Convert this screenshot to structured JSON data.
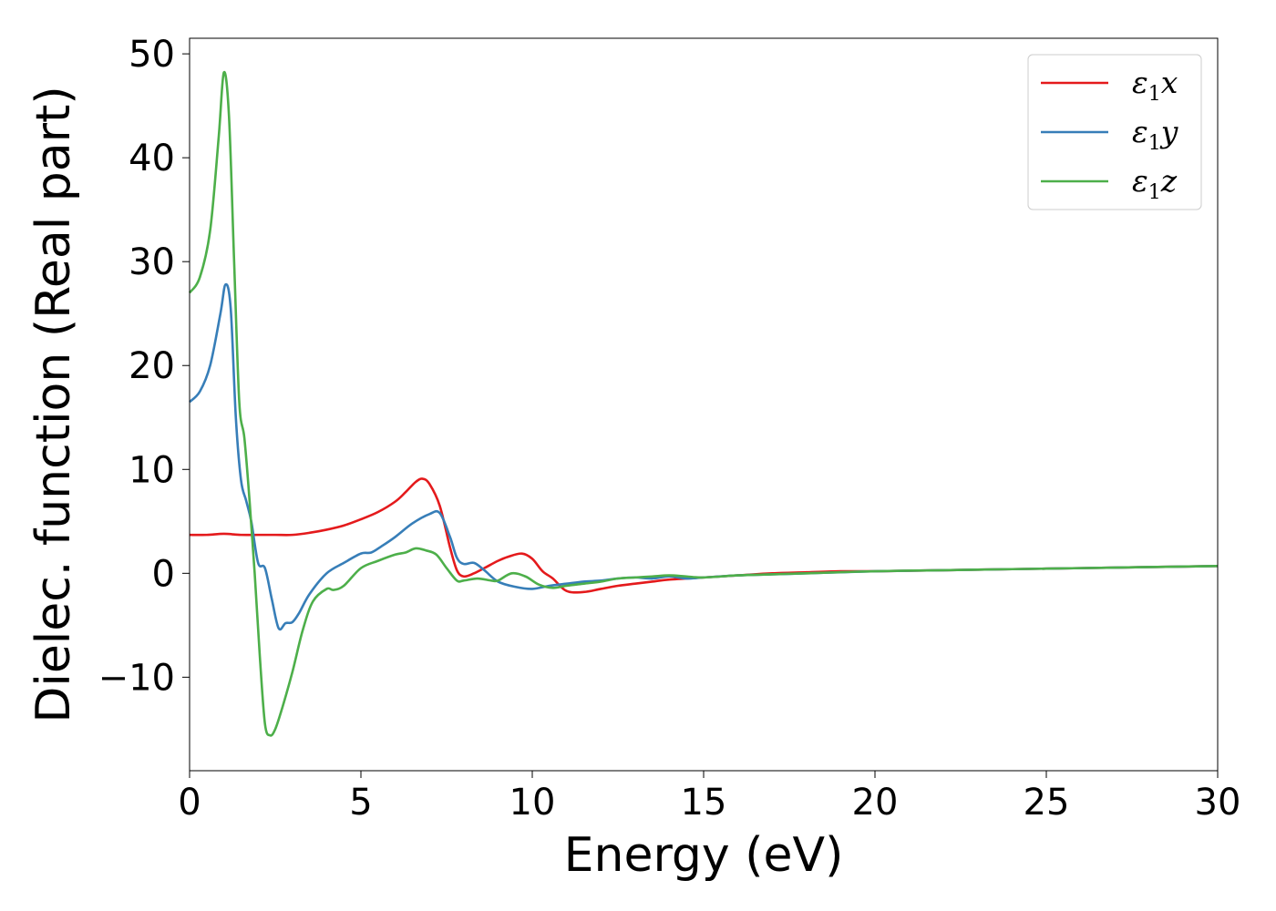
{
  "chart_data": {
    "type": "line",
    "title": "",
    "xlabel": "Energy (eV)",
    "ylabel": "Dielec. function (Real part)",
    "xlim": [
      0,
      30
    ],
    "ylim": [
      -19,
      51.5
    ],
    "xticks": [
      0,
      5,
      10,
      15,
      20,
      25,
      30
    ],
    "xtick_labels": [
      "0",
      "5",
      "10",
      "15",
      "20",
      "25",
      "30"
    ],
    "yticks": [
      -10,
      0,
      10,
      20,
      30,
      40,
      50
    ],
    "ytick_labels": [
      "−10",
      "0",
      "10",
      "20",
      "30",
      "40",
      "50"
    ],
    "grid": false,
    "legend_position": "top-right",
    "series": [
      {
        "name": "ε1x",
        "legend_symbol": "ε",
        "legend_subscript": "1",
        "legend_suffix": "x",
        "color": "#e41a1c",
        "x": [
          0,
          0.5,
          1.0,
          1.5,
          2.0,
          2.5,
          3.0,
          3.5,
          4.0,
          4.5,
          5.0,
          5.5,
          6.0,
          6.3,
          6.6,
          6.8,
          7.0,
          7.3,
          7.6,
          7.8,
          8.0,
          8.3,
          8.6,
          9.0,
          9.3,
          9.7,
          10.0,
          10.3,
          10.6,
          11.0,
          11.5,
          12.0,
          12.5,
          13.0,
          13.5,
          14.0,
          15.0,
          16.0,
          17.0,
          18.0,
          19.0,
          20.0,
          22.0,
          24.0,
          26.0,
          28.0,
          30.0
        ],
        "y": [
          3.7,
          3.7,
          3.8,
          3.7,
          3.7,
          3.7,
          3.7,
          3.9,
          4.2,
          4.6,
          5.2,
          5.9,
          6.9,
          7.8,
          8.8,
          9.1,
          8.6,
          6.5,
          2.5,
          0.3,
          -0.3,
          0.0,
          0.5,
          1.2,
          1.6,
          1.9,
          1.4,
          0.2,
          -0.5,
          -1.7,
          -1.8,
          -1.5,
          -1.2,
          -1.0,
          -0.8,
          -0.6,
          -0.4,
          -0.2,
          0.0,
          0.1,
          0.2,
          0.2,
          0.3,
          0.4,
          0.5,
          0.6,
          0.7
        ]
      },
      {
        "name": "ε1y",
        "legend_symbol": "ε",
        "legend_subscript": "1",
        "legend_suffix": "y",
        "color": "#377eb8",
        "x": [
          0,
          0.3,
          0.6,
          0.9,
          1.05,
          1.2,
          1.35,
          1.5,
          1.65,
          1.8,
          2.0,
          2.2,
          2.4,
          2.6,
          2.8,
          3.0,
          3.2,
          3.5,
          4.0,
          4.5,
          5.0,
          5.3,
          5.6,
          6.0,
          6.5,
          7.0,
          7.3,
          7.6,
          7.8,
          8.0,
          8.3,
          8.6,
          9.0,
          9.5,
          10.0,
          10.5,
          11.0,
          11.5,
          12.0,
          12.5,
          13.0,
          13.5,
          14.0,
          14.5,
          15.0,
          16.0,
          17.0,
          18.0,
          19.0,
          20.0,
          22.0,
          24.0,
          26.0,
          28.0,
          30.0
        ],
        "y": [
          16.5,
          17.5,
          20.0,
          25.0,
          27.8,
          25.5,
          15.0,
          9.0,
          7.0,
          5.0,
          1.0,
          0.5,
          -2.5,
          -5.3,
          -4.8,
          -4.7,
          -3.8,
          -2.0,
          0.0,
          1.0,
          1.9,
          2.0,
          2.6,
          3.5,
          4.8,
          5.7,
          5.8,
          3.5,
          1.5,
          0.9,
          1.0,
          0.3,
          -0.8,
          -1.3,
          -1.5,
          -1.2,
          -1.0,
          -0.8,
          -0.7,
          -0.5,
          -0.4,
          -0.5,
          -0.3,
          -0.5,
          -0.4,
          -0.2,
          -0.1,
          0.0,
          0.1,
          0.2,
          0.3,
          0.4,
          0.5,
          0.6,
          0.7
        ]
      },
      {
        "name": "ε1z",
        "legend_symbol": "ε",
        "legend_subscript": "1",
        "legend_suffix": "z",
        "color": "#4daf4a",
        "x": [
          0,
          0.3,
          0.6,
          0.85,
          1.0,
          1.15,
          1.3,
          1.45,
          1.6,
          1.75,
          1.9,
          2.05,
          2.2,
          2.35,
          2.5,
          2.7,
          3.0,
          3.3,
          3.6,
          4.0,
          4.2,
          4.5,
          5.0,
          5.5,
          6.0,
          6.3,
          6.6,
          6.9,
          7.2,
          7.5,
          7.8,
          8.0,
          8.4,
          8.8,
          9.0,
          9.4,
          9.8,
          10.2,
          10.6,
          11.0,
          11.5,
          12.0,
          12.5,
          13.0,
          13.5,
          14.0,
          14.5,
          15.0,
          16.0,
          17.0,
          18.0,
          20.0,
          22.0,
          24.0,
          26.0,
          28.0,
          30.0
        ],
        "y": [
          27.0,
          28.5,
          33.0,
          42.0,
          48.2,
          44.0,
          30.0,
          16.5,
          13.0,
          7.0,
          0.0,
          -8.0,
          -14.5,
          -15.6,
          -15.0,
          -13.0,
          -9.5,
          -5.5,
          -2.7,
          -1.5,
          -1.6,
          -1.2,
          0.5,
          1.2,
          1.8,
          2.0,
          2.4,
          2.2,
          1.8,
          0.5,
          -0.7,
          -0.7,
          -0.5,
          -0.7,
          -0.7,
          0.0,
          -0.3,
          -1.1,
          -1.4,
          -1.2,
          -1.0,
          -0.8,
          -0.5,
          -0.4,
          -0.3,
          -0.2,
          -0.3,
          -0.4,
          -0.2,
          -0.1,
          0.0,
          0.2,
          0.3,
          0.4,
          0.5,
          0.6,
          0.7
        ]
      }
    ]
  }
}
